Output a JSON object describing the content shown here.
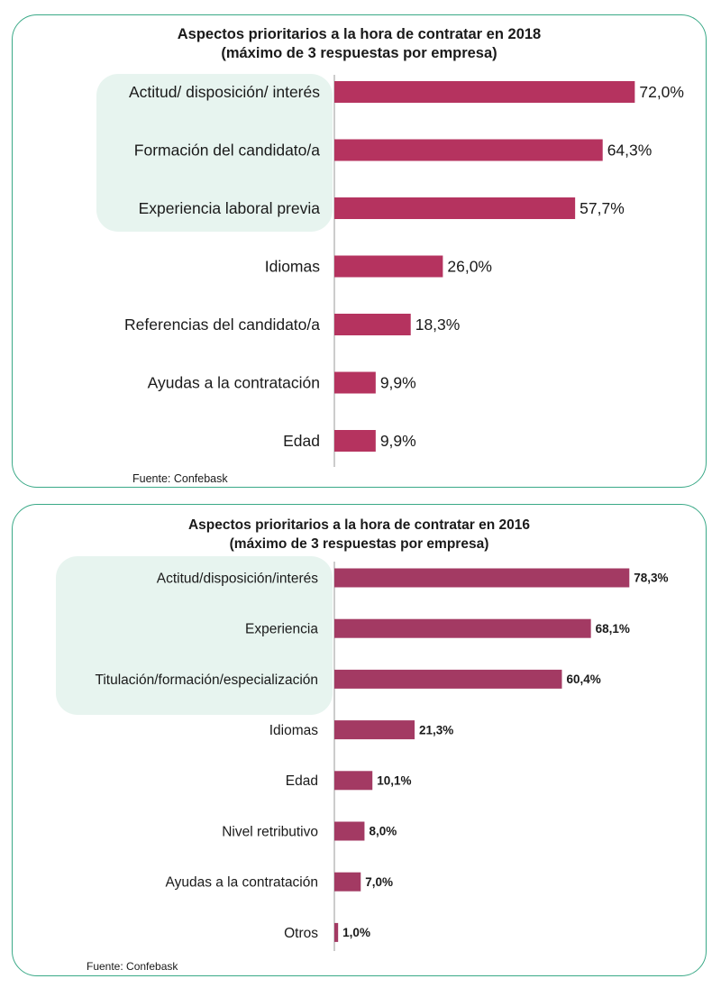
{
  "chart_data": [
    {
      "type": "bar",
      "orientation": "horizontal",
      "title": "Aspectos prioritarios a la hora de contratar en 2018",
      "subtitle": "(máximo de 3 respuestas por empresa)",
      "categories": [
        "Actitud/ disposición/ interés",
        "Formación del candidato/a",
        "Experiencia laboral previa",
        "Idiomas",
        "Referencias del candidato/a",
        "Ayudas a la contratación",
        "Edad"
      ],
      "values": [
        72.0,
        64.3,
        57.7,
        26.0,
        18.3,
        9.9,
        9.9
      ],
      "value_labels": [
        "72,0%",
        "64,3%",
        "57,7%",
        "26,0%",
        "18,3%",
        "9,9%",
        "9,9%"
      ],
      "highlighted_categories": 3,
      "xlim": [
        0,
        100
      ],
      "bar_color": "#b5335f",
      "highlight_color": "#e7f4ef",
      "source": "Fuente: Confebask"
    },
    {
      "type": "bar",
      "orientation": "horizontal",
      "title": "Aspectos prioritarios a la hora de contratar en 2016",
      "subtitle": "(máximo de 3 respuestas por empresa)",
      "categories": [
        "Actitud/disposición/interés",
        "Experiencia",
        "Titulación/formación/especialización",
        "Idiomas",
        "Edad",
        "Nivel retributivo",
        "Ayudas a la contratación",
        "Otros"
      ],
      "values": [
        78.3,
        68.1,
        60.4,
        21.3,
        10.1,
        8.0,
        7.0,
        1.0
      ],
      "value_labels": [
        "78,3%",
        "68,1%",
        "60,4%",
        "21,3%",
        "10,1%",
        "8,0%",
        "7,0%",
        "1,0%"
      ],
      "highlighted_categories": 3,
      "xlim": [
        0,
        100
      ],
      "bar_color": "#a33a63",
      "highlight_color": "#e7f4ef",
      "source": "Fuente: Confebask"
    }
  ]
}
